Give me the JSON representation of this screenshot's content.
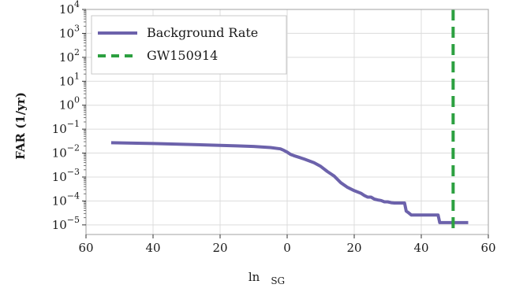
{
  "chart_data": {
    "type": "line",
    "title": "",
    "xlabel": "ln",
    "xlabel_sub": "SG",
    "ylabel": "FAR (1/yr)",
    "y_scale": "log",
    "ylim_exp": [
      -5.4,
      4
    ],
    "xlim": [
      -60,
      60
    ],
    "x_ticks": [
      -60,
      -40,
      -20,
      0,
      20,
      40,
      60
    ],
    "x_tick_labels": [
      "60",
      "40",
      "20",
      "0",
      "20",
      "40",
      "60"
    ],
    "y_ticks_exp": [
      -5,
      -4,
      -3,
      -2,
      -1,
      0,
      1,
      2,
      3,
      4
    ],
    "grid": true,
    "legend_position": "top-left",
    "series": [
      {
        "name": "Background Rate",
        "color": "#6c62ab",
        "style": "solid",
        "x": [
          -52.5,
          -40,
          -30,
          -20,
          -15,
          -10,
          -5,
          -2,
          -1,
          0,
          1,
          2,
          5,
          8,
          10,
          12,
          14,
          16,
          18,
          20,
          22,
          23,
          24,
          25,
          26,
          27,
          28,
          29,
          30,
          31,
          32,
          35,
          35.5,
          36,
          37,
          37.5,
          45,
          45.5,
          54
        ],
        "y": [
          0.027,
          0.025,
          0.023,
          0.021,
          0.02,
          0.019,
          0.017,
          0.015,
          0.013,
          0.011,
          0.0088,
          0.0078,
          0.0057,
          0.004,
          0.0028,
          0.0017,
          0.0011,
          0.00058,
          0.00037,
          0.00027,
          0.00021,
          0.00017,
          0.000145,
          0.000145,
          0.00012,
          0.00011,
          0.000105,
          9.2e-05,
          9.2e-05,
          8.5e-05,
          8.2e-05,
          8.2e-05,
          3.8e-05,
          3.4e-05,
          2.6e-05,
          2.6e-05,
          2.6e-05,
          1.25e-05,
          1.25e-05
        ]
      },
      {
        "name": "GW150914",
        "color": "#2ca040",
        "style": "dashed",
        "x_value": 49.5
      }
    ]
  }
}
